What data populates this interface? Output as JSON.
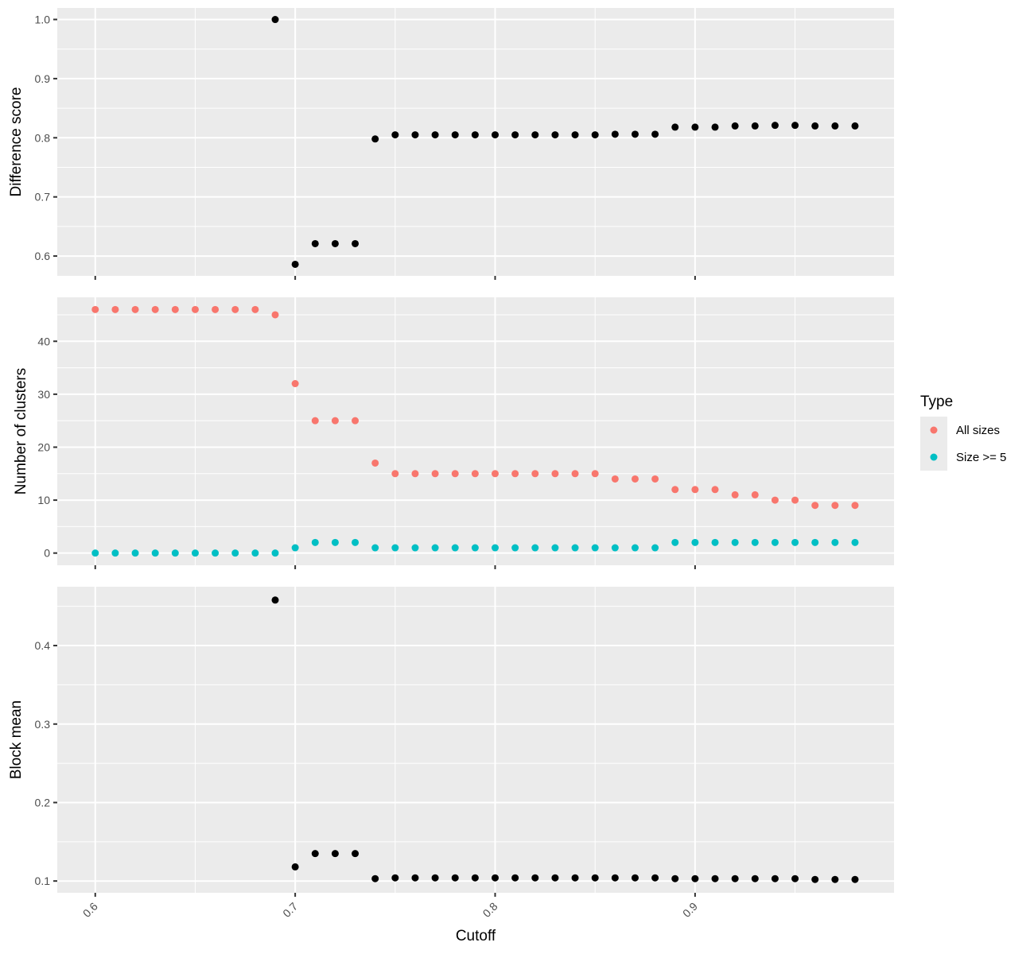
{
  "chart_data": {
    "type": "scatter",
    "xlabel": "Cutoff",
    "x_ticks": [
      "0.6",
      "0.7",
      "0.8",
      "0.9"
    ],
    "x_tick_values": [
      0.6,
      0.7,
      0.8,
      0.9
    ],
    "xlim": [
      0.581,
      0.9995
    ],
    "x": [
      0.6,
      0.61,
      0.62,
      0.63,
      0.64,
      0.65,
      0.66,
      0.67,
      0.68,
      0.69,
      0.7,
      0.71,
      0.72,
      0.73,
      0.74,
      0.75,
      0.76,
      0.77,
      0.78,
      0.79,
      0.8,
      0.81,
      0.82,
      0.83,
      0.84,
      0.85,
      0.86,
      0.87,
      0.88,
      0.89,
      0.9,
      0.91,
      0.92,
      0.93,
      0.94,
      0.95,
      0.96,
      0.97,
      0.98
    ],
    "panels": [
      {
        "ylabel": "Difference score",
        "ylim": [
          0.5665,
          1.0195
        ],
        "y_ticks": [
          "0.6",
          "0.7",
          "0.8",
          "0.9",
          "1.0"
        ],
        "y_tick_values": [
          0.6,
          0.7,
          0.8,
          0.9,
          1.0
        ],
        "series": [
          {
            "color": "#000000",
            "x": [
              0.69,
              0.7,
              0.71,
              0.72,
              0.73,
              0.74,
              0.75,
              0.76,
              0.77,
              0.78,
              0.79,
              0.8,
              0.81,
              0.82,
              0.83,
              0.84,
              0.85,
              0.86,
              0.87,
              0.88,
              0.89,
              0.9,
              0.91,
              0.92,
              0.93,
              0.94,
              0.95,
              0.96,
              0.97,
              0.98
            ],
            "values": [
              1.0,
              0.586,
              0.621,
              0.621,
              0.621,
              0.798,
              0.805,
              0.805,
              0.805,
              0.805,
              0.805,
              0.805,
              0.805,
              0.805,
              0.805,
              0.805,
              0.805,
              0.806,
              0.806,
              0.806,
              0.818,
              0.818,
              0.818,
              0.82,
              0.82,
              0.821,
              0.821,
              0.82,
              0.82,
              0.82
            ]
          }
        ]
      },
      {
        "ylabel": "Number of clusters",
        "ylim": [
          -2.3,
          48.3
        ],
        "y_ticks": [
          "0",
          "10",
          "20",
          "30",
          "40"
        ],
        "y_tick_values": [
          0,
          10,
          20,
          30,
          40
        ],
        "series": [
          {
            "name": "All sizes",
            "color": "#F8766D",
            "values": [
              46,
              46,
              46,
              46,
              46,
              46,
              46,
              46,
              46,
              45,
              32,
              25,
              25,
              25,
              17,
              15,
              15,
              15,
              15,
              15,
              15,
              15,
              15,
              15,
              15,
              15,
              14,
              14,
              14,
              12,
              12,
              12,
              11,
              11,
              10,
              10,
              9,
              9,
              9
            ]
          },
          {
            "name": "Size >= 5",
            "color": "#00BFC4",
            "values": [
              0,
              0,
              0,
              0,
              0,
              0,
              0,
              0,
              0,
              0,
              1,
              2,
              2,
              2,
              1,
              1,
              1,
              1,
              1,
              1,
              1,
              1,
              1,
              1,
              1,
              1,
              1,
              1,
              1,
              2,
              2,
              2,
              2,
              2,
              2,
              2,
              2,
              2,
              2
            ]
          }
        ]
      },
      {
        "ylabel": "Block mean",
        "ylim": [
          0.085,
          0.475
        ],
        "y_ticks": [
          "0.1",
          "0.2",
          "0.3",
          "0.4"
        ],
        "y_tick_values": [
          0.1,
          0.2,
          0.3,
          0.4
        ],
        "series": [
          {
            "color": "#000000",
            "x": [
              0.69,
              0.7,
              0.71,
              0.72,
              0.73,
              0.74,
              0.75,
              0.76,
              0.77,
              0.78,
              0.79,
              0.8,
              0.81,
              0.82,
              0.83,
              0.84,
              0.85,
              0.86,
              0.87,
              0.88,
              0.89,
              0.9,
              0.91,
              0.92,
              0.93,
              0.94,
              0.95,
              0.96,
              0.97,
              0.98
            ],
            "values": [
              0.458,
              0.118,
              0.135,
              0.135,
              0.135,
              0.103,
              0.104,
              0.104,
              0.104,
              0.104,
              0.104,
              0.104,
              0.104,
              0.104,
              0.104,
              0.104,
              0.104,
              0.104,
              0.104,
              0.104,
              0.103,
              0.103,
              0.103,
              0.103,
              0.103,
              0.103,
              0.103,
              0.102,
              0.102,
              0.102
            ]
          }
        ]
      }
    ],
    "legend": {
      "title": "Type",
      "position": "right",
      "entries": [
        {
          "label": "All sizes",
          "color": "#F8766D"
        },
        {
          "label": "Size >= 5",
          "color": "#00BFC4"
        }
      ]
    },
    "grid": true
  }
}
